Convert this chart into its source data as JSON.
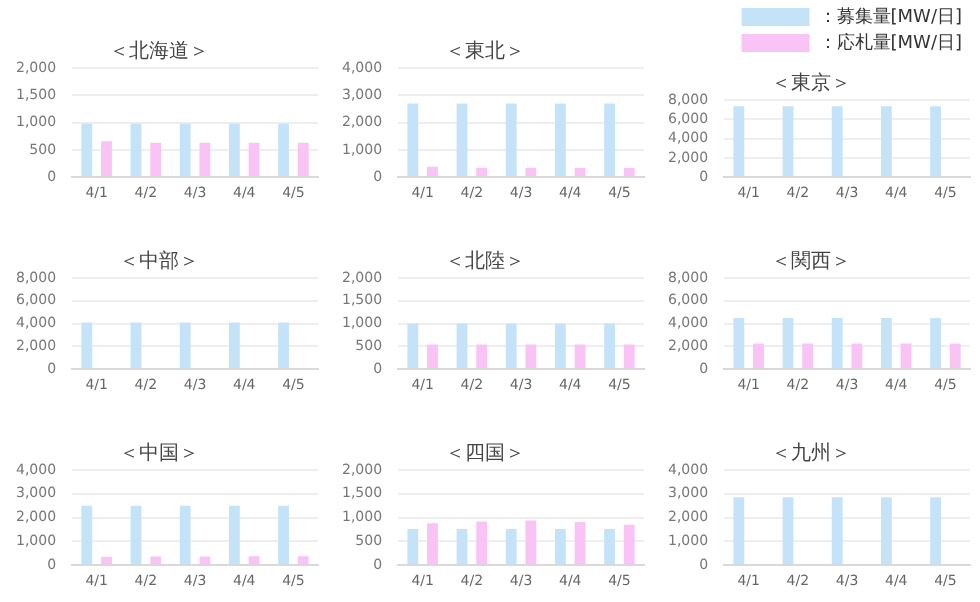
{
  "chart_data": [
    {
      "type": "bar",
      "title": "＜北海道＞",
      "categories": [
        "4/1",
        "4/2",
        "4/3",
        "4/4",
        "4/5"
      ],
      "ylim": [
        0,
        2000
      ],
      "yticks": [
        {
          "value": 0,
          "label": "0"
        },
        {
          "value": 500,
          "label": "500"
        },
        {
          "value": 1000,
          "label": "1,000"
        },
        {
          "value": 1500,
          "label": "1,500"
        },
        {
          "value": 2000,
          "label": "2,000"
        }
      ],
      "grid": "y",
      "legend": false,
      "series": [
        {
          "color": "#c5e3f8",
          "values": [
            980,
            980,
            980,
            980,
            980
          ]
        },
        {
          "color": "#f9c3f5",
          "values": [
            660,
            630,
            630,
            630,
            630
          ]
        }
      ]
    },
    {
      "type": "bar",
      "title": "＜東北＞",
      "categories": [
        "4/1",
        "4/2",
        "4/3",
        "4/4",
        "4/5"
      ],
      "ylim": [
        0,
        4000
      ],
      "yticks": [
        {
          "value": 0,
          "label": "0"
        },
        {
          "value": 1000,
          "label": "1,000"
        },
        {
          "value": 2000,
          "label": "2,000"
        },
        {
          "value": 3000,
          "label": "3,000"
        },
        {
          "value": 4000,
          "label": "4,000"
        }
      ],
      "grid": "y",
      "legend": false,
      "series": [
        {
          "color": "#c5e3f8",
          "values": [
            2700,
            2700,
            2700,
            2700,
            2700
          ]
        },
        {
          "color": "#f9c3f5",
          "values": [
            380,
            350,
            350,
            340,
            340
          ]
        }
      ]
    },
    {
      "type": "bar",
      "title": "＜東京＞",
      "categories": [
        "4/1",
        "4/2",
        "4/3",
        "4/4",
        "4/5"
      ],
      "ylim": [
        0,
        8000
      ],
      "yticks": [
        {
          "value": 0,
          "label": "0"
        },
        {
          "value": 2000,
          "label": "2,000"
        },
        {
          "value": 4000,
          "label": "4,000"
        },
        {
          "value": 6000,
          "label": "6,000"
        },
        {
          "value": 8000,
          "label": "8,000"
        }
      ],
      "grid": "y",
      "legend": "top right",
      "series": [
        {
          "name": "：募集量[MW/日]",
          "color": "#c5e3f8",
          "values": [
            7350,
            7350,
            7350,
            7350,
            7350
          ]
        },
        {
          "name": "：応札量[MW/日]",
          "color": "#f9c3f5",
          "values": [
            0,
            0,
            0,
            0,
            0
          ]
        }
      ]
    },
    {
      "type": "bar",
      "title": "＜中部＞",
      "categories": [
        "4/1",
        "4/2",
        "4/3",
        "4/4",
        "4/5"
      ],
      "ylim": [
        0,
        8000
      ],
      "yticks": [
        {
          "value": 0,
          "label": "0"
        },
        {
          "value": 2000,
          "label": "2,000"
        },
        {
          "value": 4000,
          "label": "4,000"
        },
        {
          "value": 6000,
          "label": "6,000"
        },
        {
          "value": 8000,
          "label": "8,000"
        }
      ],
      "grid": "y",
      "legend": false,
      "series": [
        {
          "color": "#c5e3f8",
          "values": [
            4100,
            4100,
            4100,
            4100,
            4100
          ]
        },
        {
          "color": "#f9c3f5",
          "values": [
            0,
            0,
            0,
            0,
            0
          ]
        }
      ]
    },
    {
      "type": "bar",
      "title": "＜北陸＞",
      "categories": [
        "4/1",
        "4/2",
        "4/3",
        "4/4",
        "4/5"
      ],
      "ylim": [
        0,
        2000
      ],
      "yticks": [
        {
          "value": 0,
          "label": "0"
        },
        {
          "value": 500,
          "label": "500"
        },
        {
          "value": 1000,
          "label": "1,000"
        },
        {
          "value": 1500,
          "label": "1,500"
        },
        {
          "value": 2000,
          "label": "2,000"
        }
      ],
      "grid": "y",
      "legend": false,
      "series": [
        {
          "color": "#c5e3f8",
          "values": [
            1000,
            1000,
            1000,
            1000,
            1000
          ]
        },
        {
          "color": "#f9c3f5",
          "values": [
            540,
            540,
            540,
            540,
            540
          ]
        }
      ]
    },
    {
      "type": "bar",
      "title": "＜関西＞",
      "categories": [
        "4/1",
        "4/2",
        "4/3",
        "4/4",
        "4/5"
      ],
      "ylim": [
        0,
        8000
      ],
      "yticks": [
        {
          "value": 0,
          "label": "0"
        },
        {
          "value": 2000,
          "label": "2,000"
        },
        {
          "value": 4000,
          "label": "4,000"
        },
        {
          "value": 6000,
          "label": "6,000"
        },
        {
          "value": 8000,
          "label": "8,000"
        }
      ],
      "grid": "y",
      "legend": false,
      "series": [
        {
          "color": "#c5e3f8",
          "values": [
            4500,
            4500,
            4500,
            4500,
            4500
          ]
        },
        {
          "color": "#f9c3f5",
          "values": [
            2250,
            2250,
            2250,
            2250,
            2250
          ]
        }
      ]
    },
    {
      "type": "bar",
      "title": "＜中国＞",
      "categories": [
        "4/1",
        "4/2",
        "4/3",
        "4/4",
        "4/5"
      ],
      "ylim": [
        0,
        4000
      ],
      "yticks": [
        {
          "value": 0,
          "label": "0"
        },
        {
          "value": 1000,
          "label": "1,000"
        },
        {
          "value": 2000,
          "label": "2,000"
        },
        {
          "value": 3000,
          "label": "3,000"
        },
        {
          "value": 4000,
          "label": "4,000"
        }
      ],
      "grid": "y",
      "legend": false,
      "series": [
        {
          "color": "#c5e3f8",
          "values": [
            2500,
            2500,
            2500,
            2500,
            2500
          ]
        },
        {
          "color": "#f9c3f5",
          "values": [
            360,
            370,
            370,
            380,
            380
          ]
        }
      ]
    },
    {
      "type": "bar",
      "title": "＜四国＞",
      "categories": [
        "4/1",
        "4/2",
        "4/3",
        "4/4",
        "4/5"
      ],
      "ylim": [
        0,
        2000
      ],
      "yticks": [
        {
          "value": 0,
          "label": "0"
        },
        {
          "value": 500,
          "label": "500"
        },
        {
          "value": 1000,
          "label": "1,000"
        },
        {
          "value": 1500,
          "label": "1,500"
        },
        {
          "value": 2000,
          "label": "2,000"
        }
      ],
      "grid": "y",
      "legend": false,
      "series": [
        {
          "color": "#c5e3f8",
          "values": [
            760,
            760,
            760,
            760,
            760
          ]
        },
        {
          "color": "#f9c3f5",
          "values": [
            880,
            920,
            940,
            910,
            850
          ]
        }
      ]
    },
    {
      "type": "bar",
      "title": "＜九州＞",
      "categories": [
        "4/1",
        "4/2",
        "4/3",
        "4/4",
        "4/5"
      ],
      "ylim": [
        0,
        4000
      ],
      "yticks": [
        {
          "value": 0,
          "label": "0"
        },
        {
          "value": 1000,
          "label": "1,000"
        },
        {
          "value": 2000,
          "label": "2,000"
        },
        {
          "value": 3000,
          "label": "3,000"
        },
        {
          "value": 4000,
          "label": "4,000"
        }
      ],
      "grid": "y",
      "legend": false,
      "series": [
        {
          "color": "#c5e3f8",
          "values": [
            2850,
            2850,
            2850,
            2850,
            2850
          ]
        },
        {
          "color": "#f9c3f5",
          "values": [
            0,
            0,
            0,
            0,
            0
          ]
        }
      ]
    }
  ]
}
